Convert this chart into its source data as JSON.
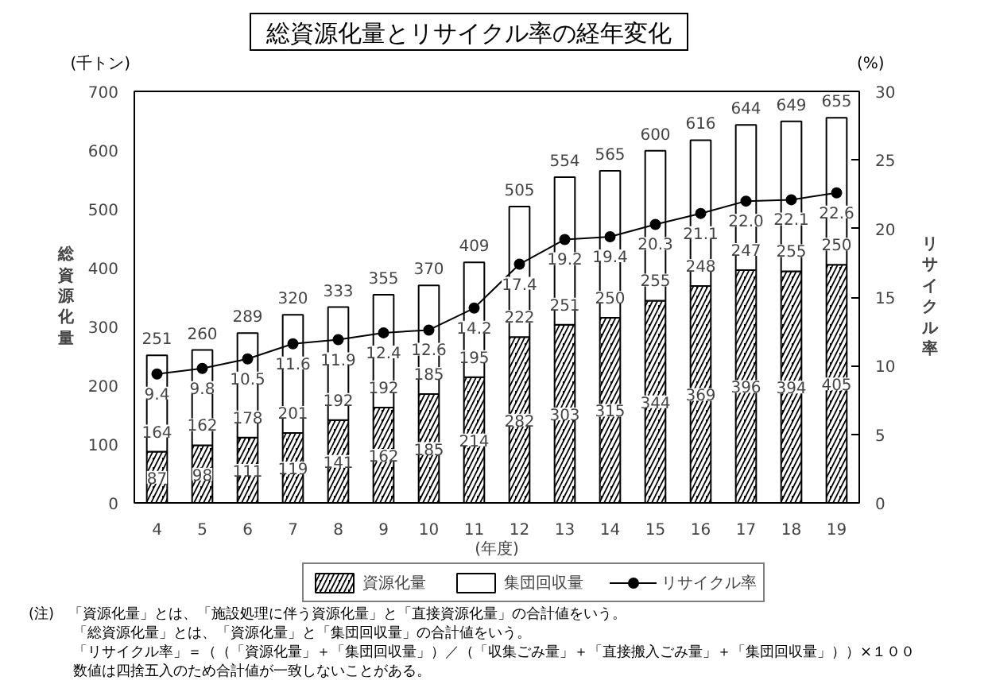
{
  "chart_data": {
    "type": "bar",
    "title": "総資源化量とリサイクル率の経年変化",
    "xlabel": "(年度)",
    "ylabel": "総資源化量",
    "y2label": "リサイクル率",
    "categories": [
      "4",
      "5",
      "6",
      "7",
      "8",
      "9",
      "10",
      "11",
      "12",
      "13",
      "14",
      "15",
      "16",
      "17",
      "18",
      "19"
    ],
    "stacked": true,
    "series": [
      {
        "name": "資源化量",
        "color": "#000000",
        "values": [
          87,
          98,
          111,
          119,
          141,
          162,
          185,
          214,
          282,
          303,
          315,
          344,
          369,
          396,
          394,
          405
        ]
      },
      {
        "name": "集団回収量",
        "color": "#ffffff",
        "values": [
          164,
          162,
          178,
          201,
          192,
          192,
          185,
          195,
          222,
          251,
          250,
          255,
          248,
          247,
          255,
          250
        ]
      },
      {
        "name": "リサイクル率",
        "type": "line",
        "axis": "y2",
        "color": "#000000",
        "values": [
          9.4,
          9.8,
          10.5,
          11.6,
          11.9,
          12.4,
          12.6,
          14.2,
          17.4,
          19.2,
          19.4,
          20.3,
          21.1,
          22.0,
          22.1,
          22.6
        ],
        "value_labels": [
          "9.4",
          "9.8",
          "10.5",
          "11.6",
          "11.9",
          "12.4",
          "12.6",
          "14.2",
          "17.4",
          "19.2",
          "19.4",
          "20.3",
          "21.1",
          "22.0",
          "22.1",
          "22.6"
        ]
      }
    ],
    "totals": [
      "251",
      "260",
      "289",
      "320",
      "333",
      "355",
      "370",
      "409",
      "505",
      "554",
      "565",
      "600",
      "616",
      "644",
      "649",
      "655"
    ],
    "ylim": [
      0,
      700
    ],
    "yticks": [
      0,
      100,
      200,
      300,
      400,
      500,
      600,
      700
    ],
    "y2lim": [
      0,
      30
    ],
    "y2ticks": [
      0,
      5,
      10,
      15,
      20,
      25,
      30
    ],
    "data_labels": true,
    "marker": "circle",
    "legend": "bottom",
    "annotations": [
      "(千トン)",
      "(%)",
      "(注)　「資源化量」とは、「施設処理に伴う資源化量」と「直接資源化量」の合計値をいう。",
      "「総資源化量」とは、「資源化量」と「集団回収量」の合計値をいう。",
      "「リサイクル率」＝（（「資源化量」＋「集団回収量」）／（「収集ごみ量」＋「直接搬入ごみ量」＋「集団回収量」））×１００",
      "数値は四捨五入のため合計値が一致しないことがある。"
    ]
  }
}
